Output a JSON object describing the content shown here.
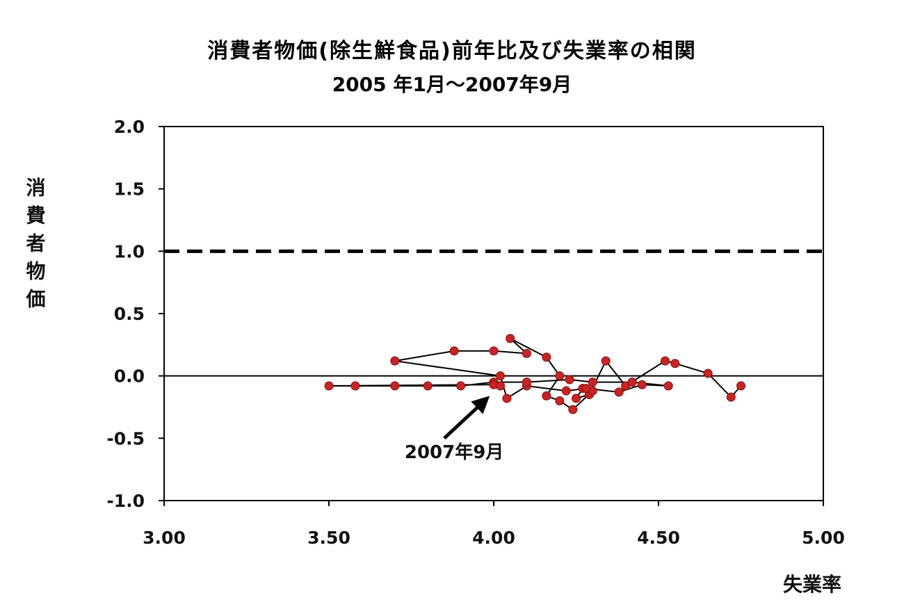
{
  "chart_data": {
    "type": "scatter",
    "title": "消費者物価(除生鮮食品)前年比及び失業率の相関",
    "subtitle": "2005 年1月〜2007年9月",
    "xlabel": "失業率",
    "ylabel": "消費者物価",
    "xlim": [
      3.0,
      5.0
    ],
    "ylim": [
      -1.0,
      2.0
    ],
    "x_ticks": [
      "3.00",
      "3.50",
      "4.00",
      "4.50",
      "5.00"
    ],
    "y_ticks": [
      "2.0",
      "1.5",
      "1.0",
      "0.5",
      "0.0",
      "-0.5",
      "-1.0"
    ],
    "grid": false,
    "reference_lines": [
      {
        "y": 1.0,
        "style": "dashed"
      },
      {
        "y": 0.0,
        "style": "solid"
      }
    ],
    "marker_color": "#cc2222",
    "line_color": "#000000",
    "series": [
      {
        "points": [
          [
            4.75,
            -0.08
          ],
          [
            4.72,
            -0.17
          ],
          [
            4.65,
            0.02
          ],
          [
            4.55,
            0.1
          ],
          [
            4.52,
            0.12
          ],
          [
            4.4,
            -0.08
          ],
          [
            4.34,
            0.12
          ],
          [
            4.29,
            -0.15
          ],
          [
            4.25,
            -0.18
          ],
          [
            4.27,
            -0.1
          ],
          [
            4.3,
            -0.12
          ],
          [
            4.24,
            -0.27
          ],
          [
            4.2,
            -0.2
          ],
          [
            4.16,
            -0.16
          ],
          [
            4.2,
            0.0
          ],
          [
            4.16,
            0.15
          ],
          [
            4.05,
            0.3
          ],
          [
            4.1,
            0.18
          ],
          [
            4.0,
            0.2
          ],
          [
            3.88,
            0.2
          ],
          [
            3.7,
            0.12
          ],
          [
            4.02,
            0.0
          ],
          [
            4.04,
            -0.18
          ],
          [
            4.1,
            -0.08
          ],
          [
            4.22,
            -0.12
          ],
          [
            4.28,
            -0.1
          ],
          [
            4.38,
            -0.13
          ],
          [
            4.45,
            -0.07
          ],
          [
            4.53,
            -0.08
          ],
          [
            4.42,
            -0.05
          ],
          [
            4.3,
            -0.05
          ],
          [
            4.23,
            -0.03
          ],
          [
            4.1,
            -0.05
          ],
          [
            4.0,
            -0.05
          ],
          [
            3.9,
            -0.08
          ],
          [
            3.8,
            -0.08
          ],
          [
            3.7,
            -0.08
          ],
          [
            3.58,
            -0.08
          ],
          [
            3.5,
            -0.08
          ],
          [
            4.0,
            -0.07
          ],
          [
            4.02,
            -0.08
          ]
        ]
      }
    ],
    "annotations": [
      {
        "text": "2007年9月",
        "x": 3.88,
        "y": -0.66,
        "arrow_from": [
          3.85,
          -0.5
        ],
        "arrow_to": [
          3.98,
          -0.18
        ]
      }
    ]
  }
}
